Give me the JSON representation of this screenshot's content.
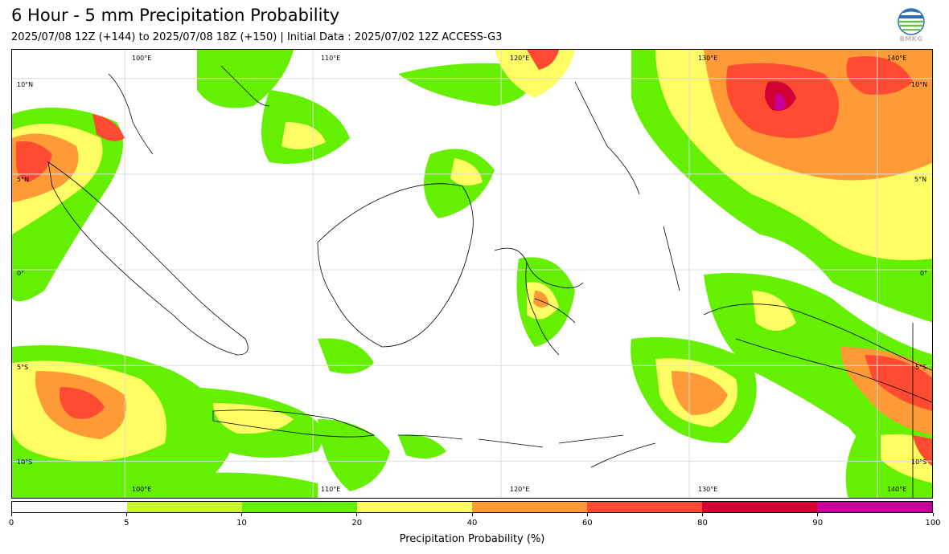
{
  "header": {
    "title": "6 Hour - 5 mm Precipitation Probability",
    "subtitle": "2025/07/08 12Z (+144) to 2025/07/08 18Z (+150) | Initial Data : 2025/07/02 12Z ACCESS-G3"
  },
  "logo": {
    "text": "BMKG",
    "icon": "bmkg-globe-logo"
  },
  "map": {
    "longitude_labels": [
      "100°E",
      "110°E",
      "120°E",
      "130°E",
      "140°E"
    ],
    "latitude_labels": [
      "10°N",
      "5°N",
      "0°",
      "5°S",
      "10°S"
    ],
    "longitudes": [
      100,
      110,
      120,
      130,
      140
    ],
    "latitudes": [
      10,
      5,
      0,
      -5,
      -10
    ],
    "lon_range": [
      94,
      143
    ],
    "lat_range": [
      -12,
      11.5
    ]
  },
  "colorbar": {
    "ticks": [
      "0",
      "5",
      "10",
      "20",
      "40",
      "60",
      "80",
      "90",
      "100"
    ],
    "label": "Precipitation Probability (%)",
    "colors": [
      "#ffffff",
      "#c8f532",
      "#64f000",
      "#fefe64",
      "#fe9b37",
      "#fe4b32",
      "#d20032",
      "#c8009b"
    ]
  }
}
